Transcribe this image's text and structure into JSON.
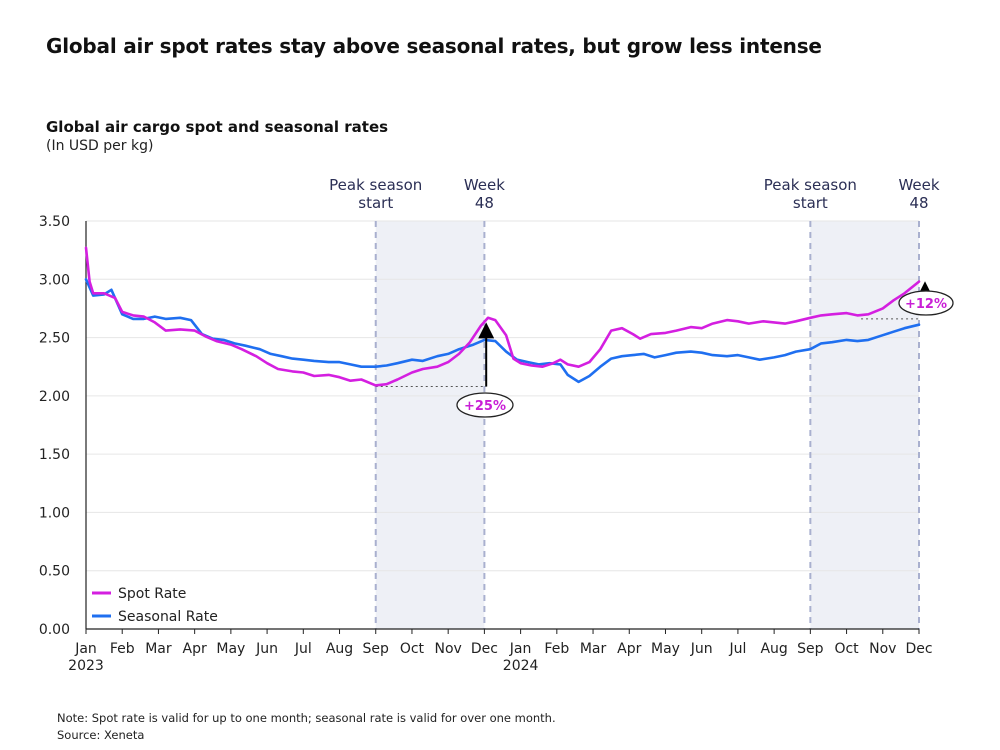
{
  "title": "Global air spot rates stay above seasonal rates, but grow less intense",
  "chart_data": {
    "type": "line",
    "title": "Global air cargo spot and seasonal rates",
    "subtitle": "(In USD per kg)",
    "ylim": [
      0,
      3.5
    ],
    "yticks": [
      "0.00",
      "0.50",
      "1.00",
      "1.50",
      "2.00",
      "2.50",
      "3.00",
      "3.50"
    ],
    "xlim": [
      0,
      23
    ],
    "month_labels": [
      "Jan",
      "Feb",
      "Mar",
      "Apr",
      "May",
      "Jun",
      "Jul",
      "Aug",
      "Sep",
      "Oct",
      "Nov",
      "Dec",
      "Jan",
      "Feb",
      "Mar",
      "Apr",
      "May",
      "Jun",
      "Jul",
      "Aug",
      "Sep",
      "Oct",
      "Nov",
      "Dec"
    ],
    "year_labels": [
      {
        "x": 0,
        "label": "2023"
      },
      {
        "x": 12,
        "label": "2024"
      }
    ],
    "grid": "horizontal",
    "legend_position": "bottom-left",
    "shaded_regions": [
      {
        "x0": 8,
        "x1": 11,
        "label_start": [
          "Peak season",
          "start"
        ],
        "label_end": [
          "Week",
          "48"
        ]
      },
      {
        "x0": 20,
        "x1": 23,
        "label_start": [
          "Peak season",
          "start"
        ],
        "label_end": [
          "Week",
          "48"
        ]
      }
    ],
    "annotations": [
      {
        "x": 11.05,
        "y_from": 2.08,
        "y_to": 2.63,
        "label": "+25%"
      },
      {
        "x": 23.2,
        "y_from": 2.66,
        "y_to": 2.98,
        "label": "+12%"
      }
    ],
    "series": [
      {
        "name": "Spot Rate",
        "color": "#d41fe0",
        "points": [
          [
            0,
            3.27
          ],
          [
            0.1,
            2.98
          ],
          [
            0.2,
            2.88
          ],
          [
            0.5,
            2.88
          ],
          [
            0.8,
            2.84
          ],
          [
            1.0,
            2.72
          ],
          [
            1.3,
            2.69
          ],
          [
            1.6,
            2.68
          ],
          [
            1.9,
            2.63
          ],
          [
            2.2,
            2.56
          ],
          [
            2.6,
            2.57
          ],
          [
            3.0,
            2.56
          ],
          [
            3.3,
            2.51
          ],
          [
            3.6,
            2.47
          ],
          [
            4.0,
            2.44
          ],
          [
            4.3,
            2.4
          ],
          [
            4.7,
            2.34
          ],
          [
            5.0,
            2.28
          ],
          [
            5.3,
            2.23
          ],
          [
            5.7,
            2.21
          ],
          [
            6.0,
            2.2
          ],
          [
            6.3,
            2.17
          ],
          [
            6.7,
            2.18
          ],
          [
            7.0,
            2.16
          ],
          [
            7.3,
            2.13
          ],
          [
            7.6,
            2.14
          ],
          [
            8.0,
            2.09
          ],
          [
            8.3,
            2.1
          ],
          [
            8.6,
            2.14
          ],
          [
            9.0,
            2.2
          ],
          [
            9.3,
            2.23
          ],
          [
            9.7,
            2.25
          ],
          [
            10.0,
            2.29
          ],
          [
            10.3,
            2.36
          ],
          [
            10.6,
            2.46
          ],
          [
            10.9,
            2.6
          ],
          [
            11.1,
            2.67
          ],
          [
            11.3,
            2.65
          ],
          [
            11.6,
            2.52
          ],
          [
            11.8,
            2.32
          ],
          [
            12.0,
            2.28
          ],
          [
            12.3,
            2.26
          ],
          [
            12.6,
            2.25
          ],
          [
            12.9,
            2.28
          ],
          [
            13.1,
            2.31
          ],
          [
            13.3,
            2.27
          ],
          [
            13.6,
            2.25
          ],
          [
            13.9,
            2.29
          ],
          [
            14.2,
            2.4
          ],
          [
            14.5,
            2.56
          ],
          [
            14.8,
            2.58
          ],
          [
            15.1,
            2.53
          ],
          [
            15.3,
            2.49
          ],
          [
            15.6,
            2.53
          ],
          [
            16.0,
            2.54
          ],
          [
            16.3,
            2.56
          ],
          [
            16.7,
            2.59
          ],
          [
            17.0,
            2.58
          ],
          [
            17.3,
            2.62
          ],
          [
            17.7,
            2.65
          ],
          [
            18.0,
            2.64
          ],
          [
            18.3,
            2.62
          ],
          [
            18.7,
            2.64
          ],
          [
            19.0,
            2.63
          ],
          [
            19.3,
            2.62
          ],
          [
            19.6,
            2.64
          ],
          [
            20.0,
            2.67
          ],
          [
            20.3,
            2.69
          ],
          [
            20.6,
            2.7
          ],
          [
            21.0,
            2.71
          ],
          [
            21.3,
            2.69
          ],
          [
            21.6,
            2.7
          ],
          [
            22.0,
            2.75
          ],
          [
            22.3,
            2.82
          ],
          [
            22.6,
            2.88
          ],
          [
            23.0,
            2.98
          ]
        ]
      },
      {
        "name": "Seasonal Rate",
        "color": "#1f6ff0",
        "points": [
          [
            0,
            3.0
          ],
          [
            0.2,
            2.86
          ],
          [
            0.5,
            2.87
          ],
          [
            0.7,
            2.91
          ],
          [
            1.0,
            2.7
          ],
          [
            1.3,
            2.66
          ],
          [
            1.6,
            2.66
          ],
          [
            1.9,
            2.68
          ],
          [
            2.2,
            2.66
          ],
          [
            2.6,
            2.67
          ],
          [
            2.9,
            2.65
          ],
          [
            3.2,
            2.53
          ],
          [
            3.5,
            2.49
          ],
          [
            3.8,
            2.48
          ],
          [
            4.1,
            2.45
          ],
          [
            4.4,
            2.43
          ],
          [
            4.8,
            2.4
          ],
          [
            5.1,
            2.36
          ],
          [
            5.4,
            2.34
          ],
          [
            5.7,
            2.32
          ],
          [
            6.0,
            2.31
          ],
          [
            6.3,
            2.3
          ],
          [
            6.7,
            2.29
          ],
          [
            7.0,
            2.29
          ],
          [
            7.3,
            2.27
          ],
          [
            7.6,
            2.25
          ],
          [
            8.0,
            2.25
          ],
          [
            8.3,
            2.26
          ],
          [
            8.6,
            2.28
          ],
          [
            9.0,
            2.31
          ],
          [
            9.3,
            2.3
          ],
          [
            9.7,
            2.34
          ],
          [
            10.0,
            2.36
          ],
          [
            10.3,
            2.4
          ],
          [
            10.7,
            2.44
          ],
          [
            11.0,
            2.48
          ],
          [
            11.3,
            2.47
          ],
          [
            11.6,
            2.38
          ],
          [
            11.9,
            2.31
          ],
          [
            12.2,
            2.29
          ],
          [
            12.5,
            2.27
          ],
          [
            12.8,
            2.28
          ],
          [
            13.1,
            2.27
          ],
          [
            13.3,
            2.18
          ],
          [
            13.6,
            2.12
          ],
          [
            13.9,
            2.17
          ],
          [
            14.2,
            2.25
          ],
          [
            14.5,
            2.32
          ],
          [
            14.8,
            2.34
          ],
          [
            15.1,
            2.35
          ],
          [
            15.4,
            2.36
          ],
          [
            15.7,
            2.33
          ],
          [
            16.0,
            2.35
          ],
          [
            16.3,
            2.37
          ],
          [
            16.7,
            2.38
          ],
          [
            17.0,
            2.37
          ],
          [
            17.3,
            2.35
          ],
          [
            17.7,
            2.34
          ],
          [
            18.0,
            2.35
          ],
          [
            18.3,
            2.33
          ],
          [
            18.6,
            2.31
          ],
          [
            19.0,
            2.33
          ],
          [
            19.3,
            2.35
          ],
          [
            19.6,
            2.38
          ],
          [
            20.0,
            2.4
          ],
          [
            20.3,
            2.45
          ],
          [
            20.6,
            2.46
          ],
          [
            21.0,
            2.48
          ],
          [
            21.3,
            2.47
          ],
          [
            21.6,
            2.48
          ],
          [
            22.0,
            2.52
          ],
          [
            22.3,
            2.55
          ],
          [
            22.6,
            2.58
          ],
          [
            23.0,
            2.61
          ]
        ]
      }
    ]
  },
  "footer": {
    "note": "Note: Spot rate is valid for up to one month; seasonal rate is valid for over one month.",
    "source": "Source: Xeneta"
  }
}
